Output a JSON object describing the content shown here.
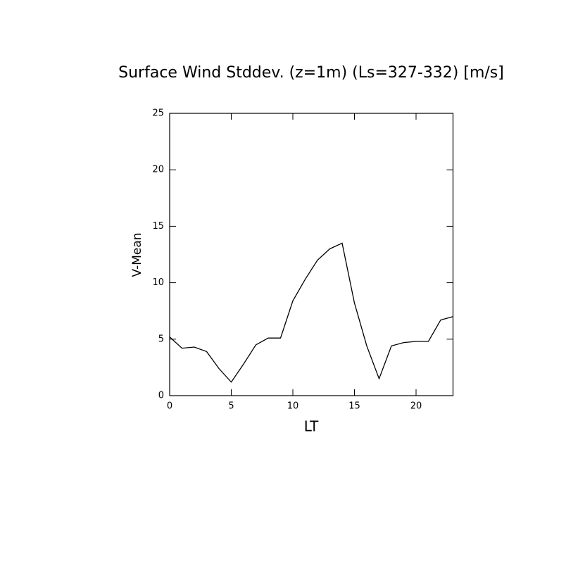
{
  "chart_data": {
    "type": "line",
    "title": "Surface Wind Stddev. (z=1m) (Ls=327-332) [m/s]",
    "x_label": "LT",
    "y_label": "V-Mean",
    "x": [
      0,
      1,
      2,
      3,
      4,
      5,
      6,
      7,
      8,
      9,
      10,
      11,
      12,
      13,
      14,
      15,
      16,
      17,
      18,
      19,
      20,
      21,
      22,
      23
    ],
    "series": [
      {
        "color": "#000000",
        "values": [
          5.2,
          4.2,
          4.3,
          3.9,
          2.4,
          1.2,
          2.8,
          4.5,
          5.1,
          5.1,
          8.4,
          10.3,
          12.0,
          13.0,
          13.5,
          8.2,
          4.4,
          1.5,
          4.4,
          4.7,
          4.8,
          4.8,
          6.7,
          7.0
        ]
      }
    ],
    "xlim": [
      0,
      23
    ],
    "xticks": [
      0,
      5,
      10,
      15,
      20
    ],
    "ylim": [
      0,
      25
    ],
    "yticks": [
      0,
      5,
      10,
      15,
      20,
      25
    ]
  }
}
